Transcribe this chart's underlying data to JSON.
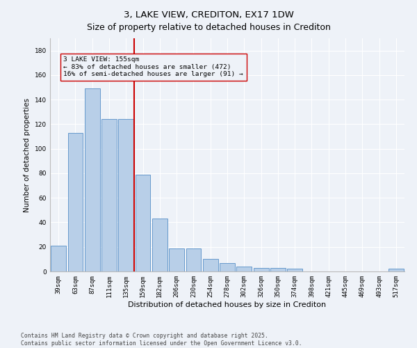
{
  "title": "3, LAKE VIEW, CREDITON, EX17 1DW",
  "subtitle": "Size of property relative to detached houses in Crediton",
  "xlabel": "Distribution of detached houses by size in Crediton",
  "ylabel": "Number of detached properties",
  "bar_labels": [
    "39sqm",
    "63sqm",
    "87sqm",
    "111sqm",
    "135sqm",
    "159sqm",
    "182sqm",
    "206sqm",
    "230sqm",
    "254sqm",
    "278sqm",
    "302sqm",
    "326sqm",
    "350sqm",
    "374sqm",
    "398sqm",
    "421sqm",
    "445sqm",
    "469sqm",
    "493sqm",
    "517sqm"
  ],
  "bar_values": [
    21,
    113,
    149,
    124,
    124,
    79,
    43,
    19,
    19,
    10,
    7,
    4,
    3,
    3,
    2,
    0,
    0,
    0,
    0,
    0,
    2
  ],
  "bar_color": "#b8cfe8",
  "bar_edge_color": "#6699cc",
  "vline_index": 5,
  "vline_color": "#cc0000",
  "annotation_text": "3 LAKE VIEW: 155sqm\n← 83% of detached houses are smaller (472)\n16% of semi-detached houses are larger (91) →",
  "annotation_box_color": "#cc0000",
  "ylim": [
    0,
    190
  ],
  "yticks": [
    0,
    20,
    40,
    60,
    80,
    100,
    120,
    140,
    160,
    180
  ],
  "background_color": "#eef2f8",
  "grid_color": "#ffffff",
  "footer": "Contains HM Land Registry data © Crown copyright and database right 2025.\nContains public sector information licensed under the Open Government Licence v3.0.",
  "title_fontsize": 9.5,
  "xlabel_fontsize": 8,
  "ylabel_fontsize": 7.5,
  "tick_fontsize": 6.5,
  "annotation_fontsize": 6.8,
  "footer_fontsize": 5.8
}
